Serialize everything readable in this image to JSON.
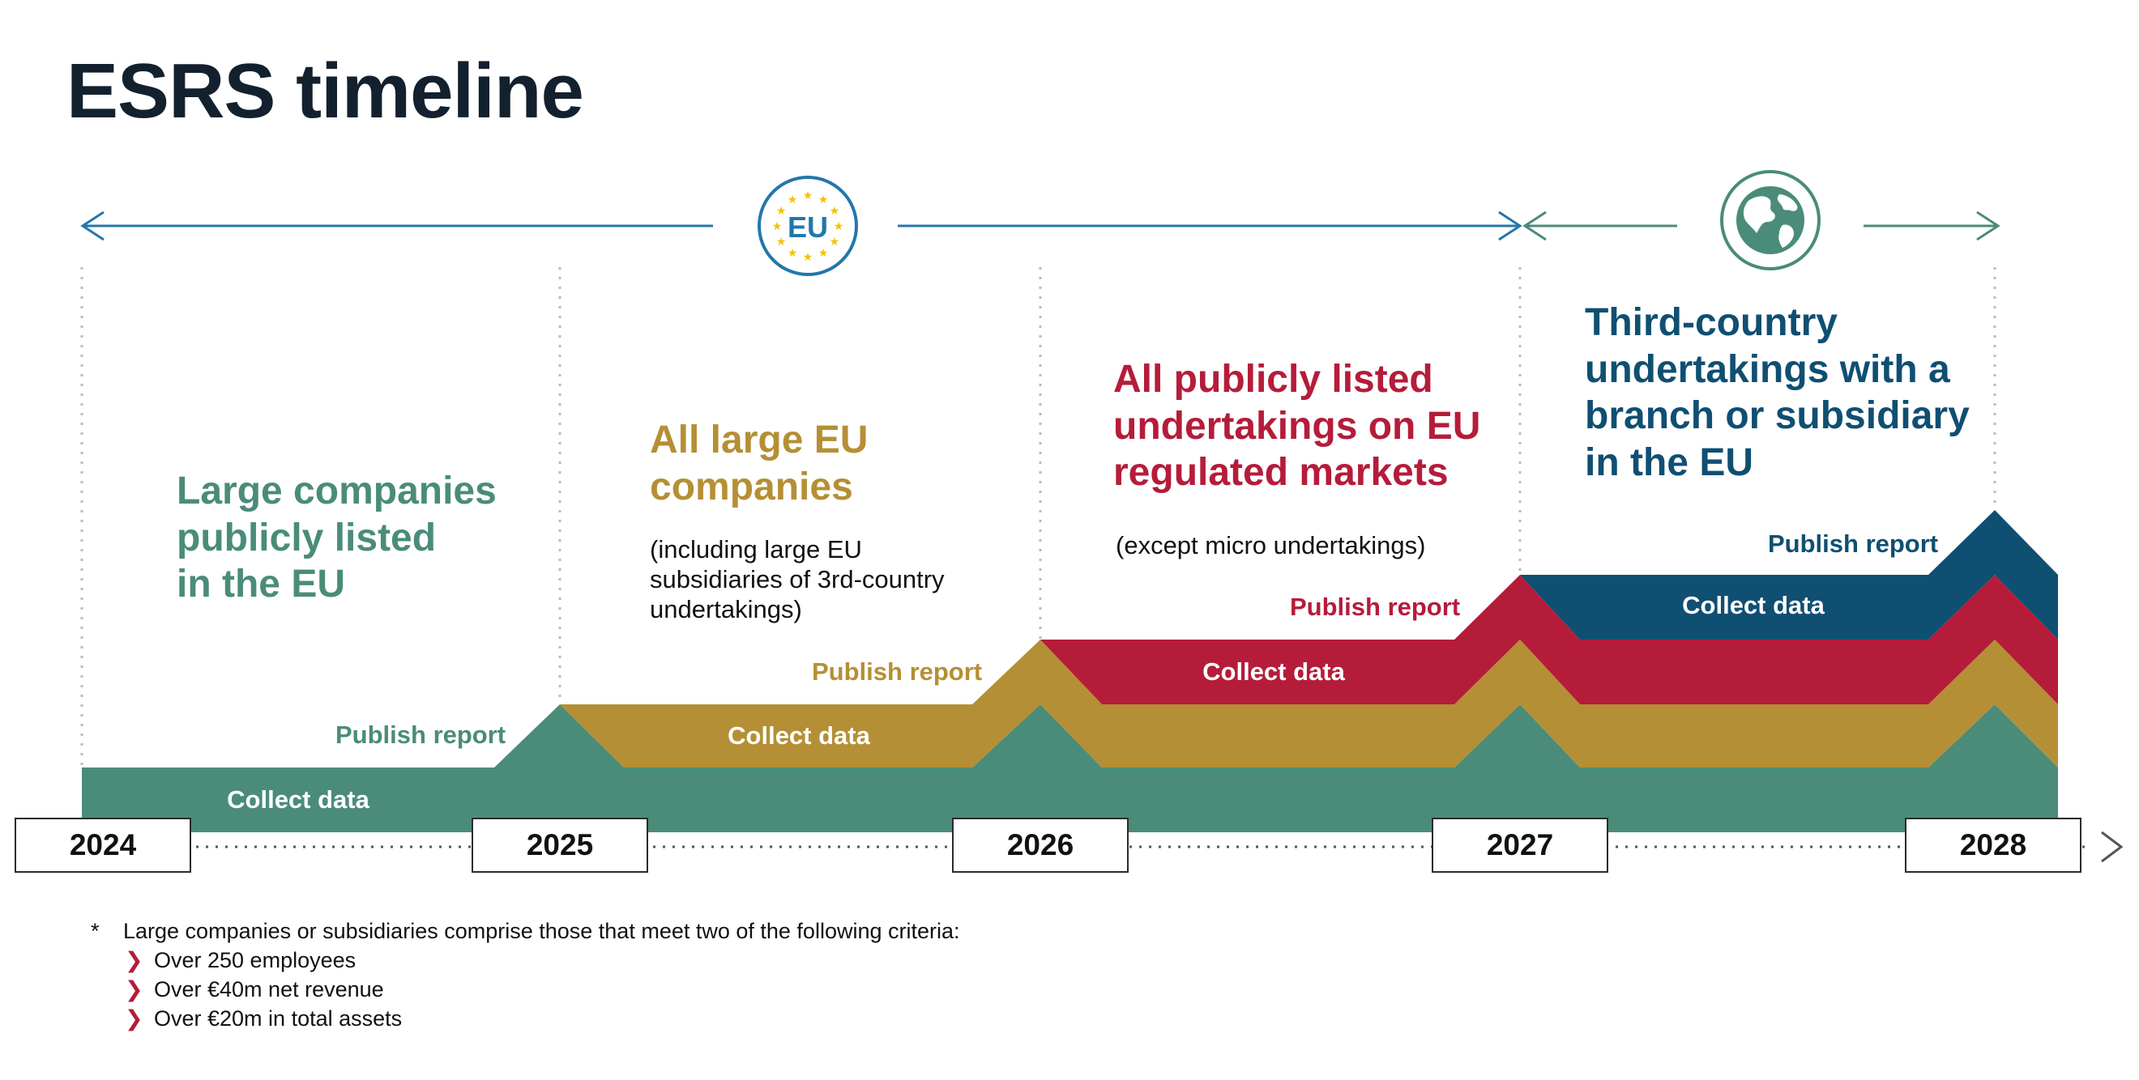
{
  "title": "ESRS timeline",
  "eu_badge": "EU",
  "globe_icon": "globe-icon",
  "colors": {
    "green": "#4a8c79",
    "gold": "#b58f35",
    "red": "#b51c3a",
    "blue": "#0f4f72",
    "arrow_blue": "#2277ab",
    "arrow_green": "#4a8c79"
  },
  "years": [
    "2024",
    "2025",
    "2026",
    "2027",
    "2028"
  ],
  "phases": [
    {
      "heading_lines": [
        "Large companies",
        "publicly listed",
        "in the EU"
      ],
      "note_lines": [],
      "publish": "Publish report",
      "collect": "Collect data"
    },
    {
      "heading_lines": [
        "All large EU",
        "companies"
      ],
      "note_lines": [
        "(including large EU",
        "subsidiaries of 3rd-country",
        "undertakings)"
      ],
      "publish": "Publish report",
      "collect": "Collect data"
    },
    {
      "heading_lines": [
        "All publicly listed",
        "undertakings on EU",
        "regulated markets"
      ],
      "note_lines": [
        "(except micro undertakings)"
      ],
      "publish": "Publish report",
      "collect": "Collect data"
    },
    {
      "heading_lines": [
        "Third-country",
        "undertakings with a",
        "branch or subsidiary",
        "in the EU"
      ],
      "note_lines": [],
      "publish": "Publish report",
      "collect": "Collect data"
    }
  ],
  "footnote": {
    "marker": "*",
    "intro": "Large companies or subsidiaries comprise those that meet two of the following criteria:",
    "criteria": [
      "Over 250 employees",
      "Over €40m net revenue",
      "Over €20m in total assets"
    ]
  }
}
